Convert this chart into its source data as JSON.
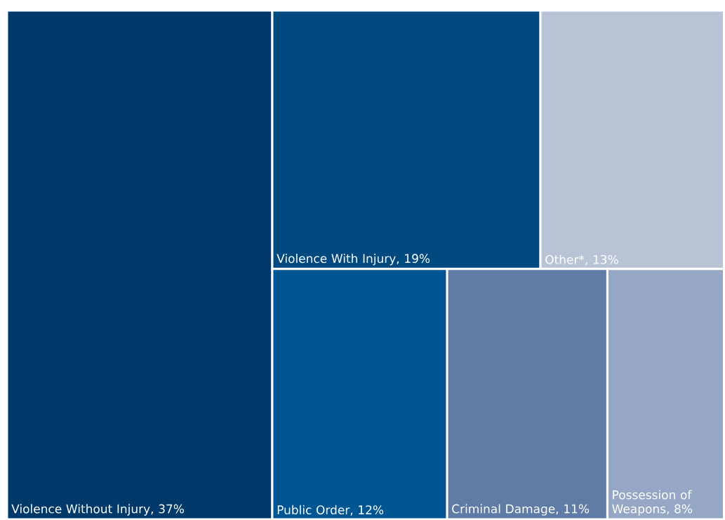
{
  "chart_data": {
    "type": "other",
    "categories": [
      "Violence Without Injury",
      "Violence With Injury",
      "Other*",
      "Public Order",
      "Criminal Damage",
      "Possession of Weapons"
    ],
    "values": [
      37,
      19,
      13,
      12,
      11,
      8
    ],
    "value_labels": [
      ", 37%",
      ", 19%",
      ", 13%",
      ", 12%",
      ", 11%",
      ", 8%"
    ],
    "colors": [
      "#003a6b",
      "#004a80",
      "#b8c4d6",
      "#005593",
      "#5f7ca6",
      "#95a7c4"
    ]
  }
}
